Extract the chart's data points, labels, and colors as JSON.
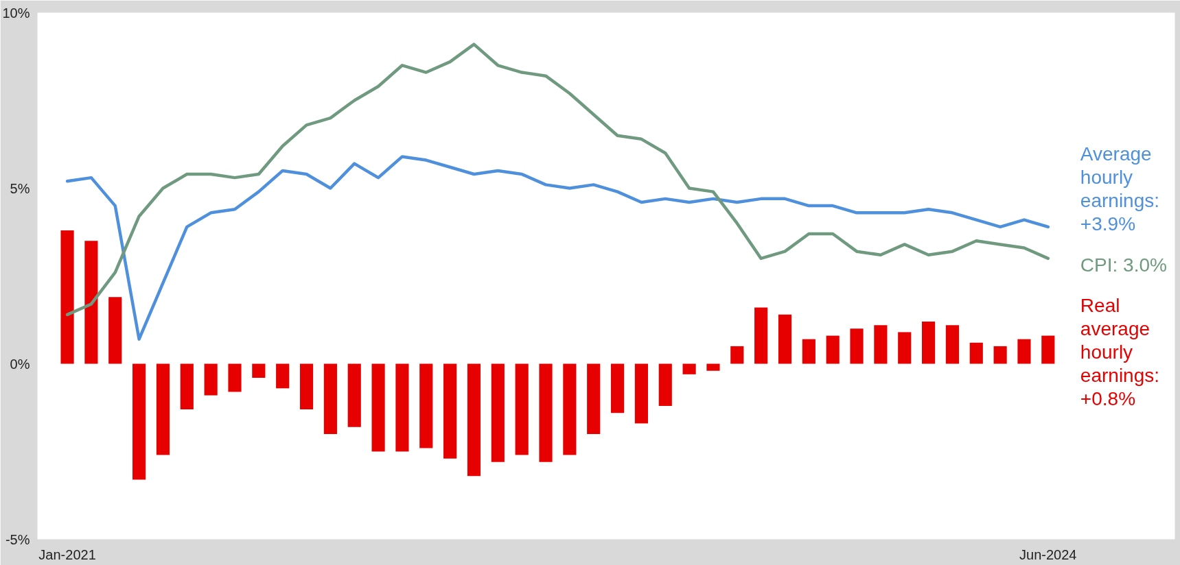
{
  "chart_data": {
    "type": "bar",
    "categories": [
      "Jan-2021",
      null,
      null,
      null,
      null,
      null,
      null,
      null,
      null,
      null,
      null,
      null,
      null,
      null,
      null,
      null,
      null,
      null,
      null,
      null,
      null,
      null,
      null,
      null,
      null,
      null,
      null,
      null,
      null,
      null,
      null,
      null,
      null,
      null,
      null,
      null,
      null,
      null,
      null,
      null,
      null,
      "Jun-2024"
    ],
    "series": [
      {
        "name": "Average hourly earnings: +3.9%",
        "type": "line",
        "color": "#4f90dc",
        "values": [
          5.2,
          5.3,
          4.5,
          0.7,
          2.3,
          3.9,
          4.3,
          4.4,
          4.9,
          5.5,
          5.4,
          5.0,
          5.7,
          5.3,
          5.9,
          5.8,
          5.6,
          5.4,
          5.5,
          5.4,
          5.1,
          5.0,
          5.1,
          4.9,
          4.6,
          4.7,
          4.6,
          4.7,
          4.6,
          4.7,
          4.7,
          4.5,
          4.5,
          4.3,
          4.3,
          4.3,
          4.4,
          4.3,
          4.1,
          3.9,
          4.1,
          3.9
        ]
      },
      {
        "name": "CPI: 3.0%",
        "type": "line",
        "color": "#6f9a80",
        "values": [
          1.4,
          1.7,
          2.6,
          4.2,
          5.0,
          5.4,
          5.4,
          5.3,
          5.4,
          6.2,
          6.8,
          7.0,
          7.5,
          7.9,
          8.5,
          8.3,
          8.6,
          9.1,
          8.5,
          8.3,
          8.2,
          7.7,
          7.1,
          6.5,
          6.4,
          6.0,
          5.0,
          4.9,
          4.0,
          3.0,
          3.2,
          3.7,
          3.7,
          3.2,
          3.1,
          3.4,
          3.1,
          3.2,
          3.5,
          3.4,
          3.3,
          3.0
        ]
      },
      {
        "name": "Real average hourly earnings: +0.8%",
        "color": "#e60000",
        "values": [
          3.8,
          3.5,
          1.9,
          -3.3,
          -2.6,
          -1.3,
          -0.9,
          -0.8,
          -0.4,
          -0.7,
          -1.3,
          -2.0,
          -1.8,
          -2.5,
          -2.5,
          -2.4,
          -2.7,
          -3.2,
          -2.8,
          -2.6,
          -2.8,
          -2.6,
          -2.0,
          -1.4,
          -1.7,
          -1.2,
          -0.3,
          -0.2,
          0.5,
          1.6,
          1.4,
          0.7,
          0.8,
          1.0,
          1.1,
          0.9,
          1.2,
          1.1,
          0.6,
          0.5,
          0.7,
          0.8
        ]
      }
    ],
    "ylim": [
      -5,
      10
    ],
    "yticks": [
      {
        "value": -5,
        "label": "-5%"
      },
      {
        "value": 0,
        "label": "0%"
      },
      {
        "value": 5,
        "label": "5%"
      },
      {
        "value": 10,
        "label": "10%"
      }
    ],
    "grid": false,
    "marker": "none",
    "line_style": "solid"
  }
}
